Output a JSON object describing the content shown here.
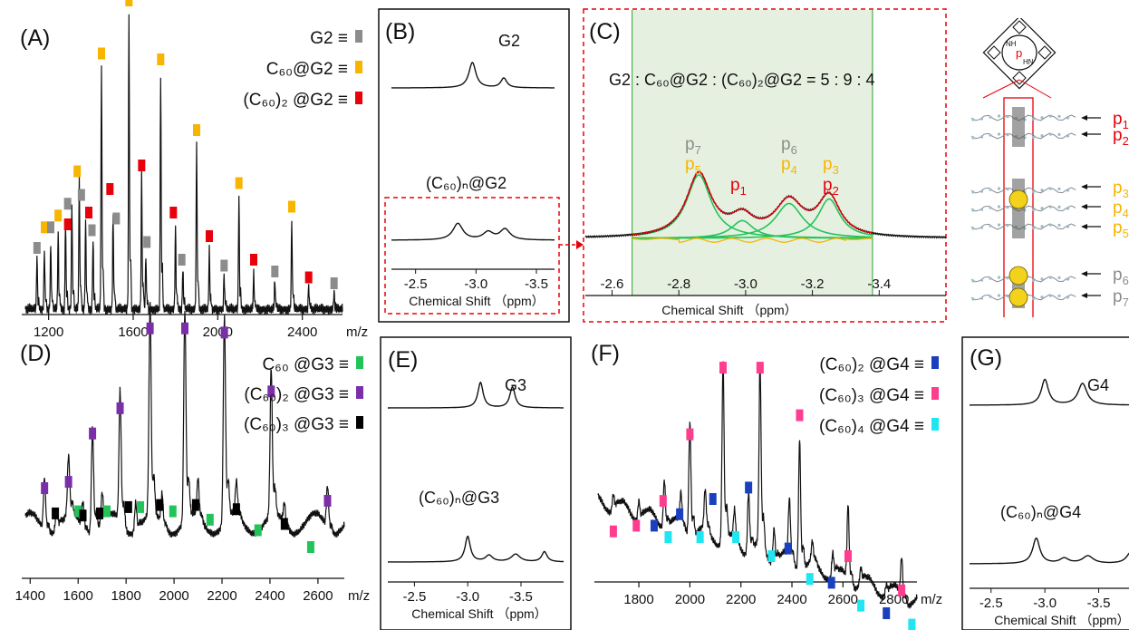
{
  "figure": {
    "panels": {
      "A": {
        "label": "(A)"
      },
      "B": {
        "label": "(B)"
      },
      "C": {
        "label": "(C)"
      },
      "D": {
        "label": "(D)"
      },
      "E": {
        "label": "(E)"
      },
      "F": {
        "label": "(F)"
      },
      "G": {
        "label": "(G)"
      }
    },
    "ratio_text": "G2 : C₆₀@G2 : (C₆₀)₂@G2 = 5 : 9 : 4",
    "porphyrin_label": "p",
    "peak_labels": {
      "p7": "p7",
      "p5": "p5",
      "p6": "p6",
      "p4": "p4",
      "p3": "p3",
      "p2": "p2",
      "p1": "p1"
    },
    "model_labels": [
      "p1",
      "p2",
      "p3",
      "p4",
      "p5",
      "p6",
      "p7"
    ],
    "colors": {
      "gray": "#8c8c8c",
      "yellow": "#f7b500",
      "red": "#e8000b",
      "green": "#22c45a",
      "purple": "#7a2ea8",
      "black": "#000000",
      "blue": "#1a3fbf",
      "pink": "#ff3d8f",
      "cyan": "#1fe6f0",
      "shade": "#e6f0e0"
    }
  },
  "chart_data": [
    {
      "panel": "A",
      "type": "line",
      "xlabel": "m/z",
      "xticks": [
        "1200",
        "1600",
        "2000",
        "2400"
      ],
      "xlim": [
        1090,
        2590
      ],
      "legend": [
        {
          "text": "G2 ≡",
          "color": "#8c8c8c"
        },
        {
          "text": "C₆₀@G2 ≡",
          "color": "#f7b500"
        },
        {
          "text": "(C₆₀)₂ @G2 ≡",
          "color": "#e8000b"
        }
      ],
      "peaks": [
        {
          "x": 1145,
          "h": 0.18
        },
        {
          "x": 1180,
          "h": 0.2
        },
        {
          "x": 1210,
          "h": 0.22
        },
        {
          "x": 1245,
          "h": 0.26
        },
        {
          "x": 1280,
          "h": 0.3
        },
        {
          "x": 1310,
          "h": 0.36
        },
        {
          "x": 1345,
          "h": 0.44
        },
        {
          "x": 1375,
          "h": 0.3
        },
        {
          "x": 1410,
          "h": 0.24
        },
        {
          "x": 1450,
          "h": 0.82
        },
        {
          "x": 1505,
          "h": 0.32
        },
        {
          "x": 1580,
          "h": 1.0
        },
        {
          "x": 1640,
          "h": 0.46
        },
        {
          "x": 1660,
          "h": 0.18
        },
        {
          "x": 1730,
          "h": 0.8
        },
        {
          "x": 1800,
          "h": 0.28
        },
        {
          "x": 1835,
          "h": 0.14
        },
        {
          "x": 1900,
          "h": 0.56
        },
        {
          "x": 1960,
          "h": 0.2
        },
        {
          "x": 2030,
          "h": 0.12
        },
        {
          "x": 2100,
          "h": 0.38
        },
        {
          "x": 2170,
          "h": 0.12
        },
        {
          "x": 2270,
          "h": 0.1
        },
        {
          "x": 2350,
          "h": 0.3
        },
        {
          "x": 2430,
          "h": 0.08
        },
        {
          "x": 2550,
          "h": 0.06
        }
      ],
      "markers": [
        {
          "x": 1145,
          "y": 0.2,
          "c": "gray"
        },
        {
          "x": 1180,
          "y": 0.27,
          "c": "yellow"
        },
        {
          "x": 1210,
          "y": 0.27,
          "c": "gray"
        },
        {
          "x": 1245,
          "y": 0.31,
          "c": "yellow"
        },
        {
          "x": 1290,
          "y": 0.35,
          "c": "gray"
        },
        {
          "x": 1290,
          "y": 0.28,
          "c": "red"
        },
        {
          "x": 1335,
          "y": 0.46,
          "c": "yellow"
        },
        {
          "x": 1355,
          "y": 0.38,
          "c": "gray"
        },
        {
          "x": 1390,
          "y": 0.32,
          "c": "red"
        },
        {
          "x": 1405,
          "y": 0.26,
          "c": "gray"
        },
        {
          "x": 1450,
          "y": 0.86,
          "c": "yellow"
        },
        {
          "x": 1490,
          "y": 0.4,
          "c": "red"
        },
        {
          "x": 1520,
          "y": 0.3,
          "c": "gray"
        },
        {
          "x": 1580,
          "y": 1.04,
          "c": "yellow"
        },
        {
          "x": 1640,
          "y": 0.48,
          "c": "red"
        },
        {
          "x": 1665,
          "y": 0.22,
          "c": "gray"
        },
        {
          "x": 1730,
          "y": 0.84,
          "c": "yellow"
        },
        {
          "x": 1790,
          "y": 0.32,
          "c": "red"
        },
        {
          "x": 1830,
          "y": 0.16,
          "c": "gray"
        },
        {
          "x": 1900,
          "y": 0.6,
          "c": "yellow"
        },
        {
          "x": 1960,
          "y": 0.24,
          "c": "red"
        },
        {
          "x": 2030,
          "y": 0.14,
          "c": "gray"
        },
        {
          "x": 2100,
          "y": 0.42,
          "c": "yellow"
        },
        {
          "x": 2170,
          "y": 0.16,
          "c": "red"
        },
        {
          "x": 2270,
          "y": 0.12,
          "c": "gray"
        },
        {
          "x": 2350,
          "y": 0.34,
          "c": "yellow"
        },
        {
          "x": 2430,
          "y": 0.1,
          "c": "red"
        },
        {
          "x": 2550,
          "y": 0.08,
          "c": "gray"
        }
      ]
    },
    {
      "panel": "B",
      "type": "line",
      "xlabel": "Chemical Shift （ppm）",
      "xticks": [
        "-2.5",
        "-3.0",
        "-3.5"
      ],
      "xlim": [
        -2.3,
        -3.65
      ],
      "spectra": [
        {
          "label": "G2",
          "peaks": [
            {
              "x": -2.97,
              "h": 1.0,
              "w": 0.035
            },
            {
              "x": -3.23,
              "h": 0.38,
              "w": 0.03
            }
          ]
        },
        {
          "label": "(C₆₀)ₙ@G2",
          "peaks": [
            {
              "x": -2.85,
              "h": 0.65,
              "w": 0.05
            },
            {
              "x": -3.1,
              "h": 0.3,
              "w": 0.05
            },
            {
              "x": -3.24,
              "h": 0.42,
              "w": 0.05
            }
          ]
        }
      ]
    },
    {
      "panel": "C",
      "type": "line",
      "xlabel": "Chemical Shift （ppm）",
      "xticks": [
        "-2.6",
        "-2.8",
        "-3.0",
        "-3.2",
        "-3.4"
      ],
      "xlim": [
        -2.52,
        -3.6
      ],
      "fit_range": [
        -2.66,
        -3.38
      ],
      "components": [
        {
          "x": -2.86,
          "h": 1.0,
          "w": 0.045
        },
        {
          "x": -2.99,
          "h": 0.28,
          "w": 0.04
        },
        {
          "x": -3.13,
          "h": 0.55,
          "w": 0.05
        },
        {
          "x": -3.25,
          "h": 0.62,
          "w": 0.04
        }
      ]
    },
    {
      "panel": "D",
      "type": "line",
      "xlabel": "m/z",
      "xticks": [
        "1400",
        "1600",
        "1800",
        "2000",
        "2200",
        "2400",
        "2600"
      ],
      "xlim": [
        1380,
        2710
      ],
      "legend": [
        {
          "text": "C₆₀ @G3 ≡",
          "color": "#22c45a"
        },
        {
          "text": "(C₆₀)₂ @G3 ≡",
          "color": "#7a2ea8"
        },
        {
          "text": "(C₆₀)₃ @G3 ≡",
          "color": "#000000"
        }
      ],
      "peaks": [
        {
          "x": 1460,
          "h": 0.25
        },
        {
          "x": 1560,
          "h": 0.28
        },
        {
          "x": 1660,
          "h": 0.5
        },
        {
          "x": 1775,
          "h": 0.62
        },
        {
          "x": 1900,
          "h": 1.0
        },
        {
          "x": 2045,
          "h": 1.0
        },
        {
          "x": 2210,
          "h": 0.98
        },
        {
          "x": 2405,
          "h": 0.7
        },
        {
          "x": 2640,
          "h": 0.2
        },
        {
          "x": 1510,
          "h": 0.1
        },
        {
          "x": 1620,
          "h": 0.12
        },
        {
          "x": 1700,
          "h": 0.14
        },
        {
          "x": 1840,
          "h": 0.14
        },
        {
          "x": 1950,
          "h": 0.14
        },
        {
          "x": 2100,
          "h": 0.18
        },
        {
          "x": 2260,
          "h": 0.16
        },
        {
          "x": 2460,
          "h": 0.1
        }
      ],
      "markers": [
        {
          "x": 1460,
          "y": 0.28,
          "c": "purple"
        },
        {
          "x": 1560,
          "y": 0.31,
          "c": "purple"
        },
        {
          "x": 1660,
          "y": 0.54,
          "c": "purple"
        },
        {
          "x": 1775,
          "y": 0.66,
          "c": "purple"
        },
        {
          "x": 1900,
          "y": 1.04,
          "c": "purple"
        },
        {
          "x": 2045,
          "y": 1.04,
          "c": "purple"
        },
        {
          "x": 2210,
          "y": 1.02,
          "c": "purple"
        },
        {
          "x": 2405,
          "y": 0.74,
          "c": "purple"
        },
        {
          "x": 2640,
          "y": 0.22,
          "c": "purple"
        },
        {
          "x": 1505,
          "y": 0.16,
          "c": "black"
        },
        {
          "x": 1600,
          "y": 0.17,
          "c": "green"
        },
        {
          "x": 1620,
          "y": 0.15,
          "c": "black"
        },
        {
          "x": 1690,
          "y": 0.16,
          "c": "black"
        },
        {
          "x": 1720,
          "y": 0.17,
          "c": "green"
        },
        {
          "x": 1810,
          "y": 0.19,
          "c": "black"
        },
        {
          "x": 1860,
          "y": 0.19,
          "c": "green"
        },
        {
          "x": 1940,
          "y": 0.2,
          "c": "black"
        },
        {
          "x": 1995,
          "y": 0.17,
          "c": "green"
        },
        {
          "x": 2090,
          "y": 0.2,
          "c": "black"
        },
        {
          "x": 2150,
          "y": 0.13,
          "c": "green"
        },
        {
          "x": 2260,
          "y": 0.18,
          "c": "black"
        },
        {
          "x": 2350,
          "y": 0.08,
          "c": "green"
        },
        {
          "x": 2460,
          "y": 0.11,
          "c": "black"
        },
        {
          "x": 2570,
          "y": 0.0,
          "c": "green"
        }
      ]
    },
    {
      "panel": "E",
      "type": "line",
      "xlabel": "Chemical Shift （ppm）",
      "xticks": [
        "-2.5",
        "-3.0",
        "-3.5"
      ],
      "xlim": [
        -2.25,
        -3.9
      ],
      "spectra": [
        {
          "label": "G3",
          "peaks": [
            {
              "x": -3.12,
              "h": 1.0,
              "w": 0.03
            },
            {
              "x": -3.42,
              "h": 0.82,
              "w": 0.03
            }
          ]
        },
        {
          "label": "(C₆₀)ₙ@G3",
          "peaks": [
            {
              "x": -3.0,
              "h": 1.0,
              "w": 0.03
            },
            {
              "x": -3.2,
              "h": 0.25,
              "w": 0.04
            },
            {
              "x": -3.45,
              "h": 0.3,
              "w": 0.05
            },
            {
              "x": -3.72,
              "h": 0.4,
              "w": 0.03
            }
          ]
        }
      ]
    },
    {
      "panel": "F",
      "type": "line",
      "xlabel": "m/z",
      "xticks": [
        "1800",
        "2000",
        "2200",
        "2400",
        "2600",
        "2800"
      ],
      "xlim": [
        1640,
        2890
      ],
      "legend": [
        {
          "text": "(C₆₀)₂ @G4 ≡",
          "color": "#1a3fbf"
        },
        {
          "text": "(C₆₀)₃ @G4 ≡",
          "color": "#ff3d8f"
        },
        {
          "text": "(C₆₀)₄ @G4 ≡",
          "color": "#1fe6f0"
        }
      ],
      "peaks": [
        {
          "x": 1700,
          "h": 0.08
        },
        {
          "x": 1800,
          "h": 0.1
        },
        {
          "x": 1900,
          "h": 0.26
        },
        {
          "x": 1965,
          "h": 0.16
        },
        {
          "x": 2000,
          "h": 0.6
        },
        {
          "x": 2060,
          "h": 0.2
        },
        {
          "x": 2130,
          "h": 0.95
        },
        {
          "x": 2175,
          "h": 0.15
        },
        {
          "x": 2230,
          "h": 0.32
        },
        {
          "x": 2275,
          "h": 0.95
        },
        {
          "x": 2330,
          "h": 0.18
        },
        {
          "x": 2390,
          "h": 0.3
        },
        {
          "x": 2430,
          "h": 0.7
        },
        {
          "x": 2480,
          "h": 0.1
        },
        {
          "x": 2560,
          "h": 0.12
        },
        {
          "x": 2620,
          "h": 0.4
        },
        {
          "x": 2670,
          "h": 0.08
        },
        {
          "x": 2770,
          "h": 0.05
        },
        {
          "x": 2830,
          "h": 0.2
        }
      ],
      "markers": [
        {
          "x": 1700,
          "y": 0.13,
          "c": "pink"
        },
        {
          "x": 1790,
          "y": 0.16,
          "c": "pink"
        },
        {
          "x": 1860,
          "y": 0.16,
          "c": "blue"
        },
        {
          "x": 1895,
          "y": 0.29,
          "c": "pink"
        },
        {
          "x": 1915,
          "y": 0.1,
          "c": "cyan"
        },
        {
          "x": 1960,
          "y": 0.22,
          "c": "blue"
        },
        {
          "x": 2000,
          "y": 0.64,
          "c": "pink"
        },
        {
          "x": 2040,
          "y": 0.1,
          "c": "cyan"
        },
        {
          "x": 2090,
          "y": 0.3,
          "c": "blue"
        },
        {
          "x": 2130,
          "y": 0.99,
          "c": "pink"
        },
        {
          "x": 2180,
          "y": 0.1,
          "c": "cyan"
        },
        {
          "x": 2230,
          "y": 0.36,
          "c": "blue"
        },
        {
          "x": 2275,
          "y": 0.99,
          "c": "pink"
        },
        {
          "x": 2320,
          "y": 0.0,
          "c": "cyan"
        },
        {
          "x": 2385,
          "y": 0.04,
          "c": "blue"
        },
        {
          "x": 2430,
          "y": 0.74,
          "c": "pink"
        },
        {
          "x": 2470,
          "y": -0.12,
          "c": "cyan"
        },
        {
          "x": 2555,
          "y": -0.14,
          "c": "blue"
        },
        {
          "x": 2620,
          "y": 0.0,
          "c": "pink"
        },
        {
          "x": 2670,
          "y": -0.26,
          "c": "cyan"
        },
        {
          "x": 2770,
          "y": -0.3,
          "c": "blue"
        },
        {
          "x": 2830,
          "y": -0.18,
          "c": "pink"
        },
        {
          "x": 2870,
          "y": -0.36,
          "c": "cyan"
        }
      ]
    },
    {
      "panel": "G",
      "type": "line",
      "xlabel": "Chemical Shift （ppm）",
      "xticks": [
        "-2.5",
        "-3.0",
        "-3.5"
      ],
      "xlim": [
        -2.3,
        -3.95
      ],
      "spectra": [
        {
          "label": "G4",
          "peaks": [
            {
              "x": -3.0,
              "h": 1.0,
              "w": 0.04
            },
            {
              "x": -3.35,
              "h": 0.85,
              "w": 0.05
            }
          ]
        },
        {
          "label": "(C₆₀)ₙ@G4",
          "peaks": [
            {
              "x": -2.92,
              "h": 1.0,
              "w": 0.04
            },
            {
              "x": -3.18,
              "h": 0.2,
              "w": 0.05
            },
            {
              "x": -3.4,
              "h": 0.3,
              "w": 0.06
            },
            {
              "x": -3.8,
              "h": 0.45,
              "w": 0.05
            }
          ]
        }
      ]
    }
  ]
}
